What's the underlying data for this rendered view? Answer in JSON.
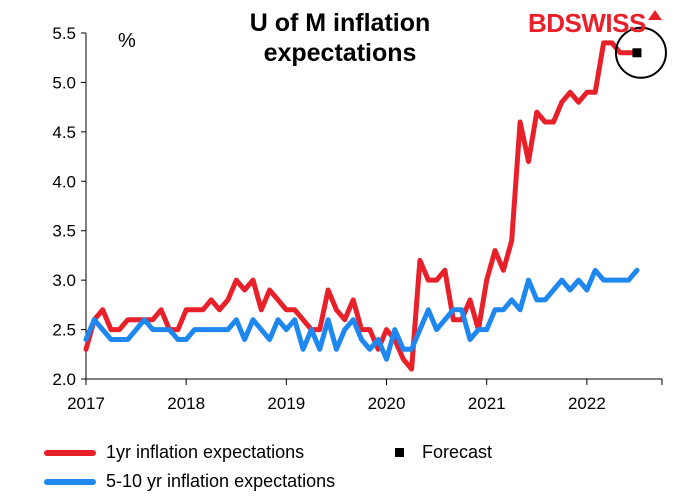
{
  "title": "U of M inflation expectations",
  "title_line1": "U of M inflation",
  "title_line2": "expectations",
  "unit_label": "%",
  "logo_text": "BDSWISS",
  "legend": {
    "one_year": "1yr inflation expectations",
    "forecast": "Forecast",
    "five_ten": "5-10 yr inflation expectations"
  },
  "colors": {
    "one_year": "#e8202a",
    "five_ten": "#1f87f0",
    "forecast": "#000000",
    "circle": "#000000"
  },
  "chart_data": {
    "type": "line",
    "xlim": [
      2017.0,
      2022.75
    ],
    "ylim": [
      2.0,
      5.5
    ],
    "y_ticks": [
      "2.0",
      "2.5",
      "3.0",
      "3.5",
      "4.0",
      "4.5",
      "5.0",
      "5.5"
    ],
    "x_ticks": [
      "2017",
      "2018",
      "2019",
      "2020",
      "2021",
      "2022"
    ],
    "series": [
      {
        "name": "1yr inflation expectations",
        "x": [
          2017.0,
          2017.083,
          2017.167,
          2017.25,
          2017.333,
          2017.417,
          2017.5,
          2017.583,
          2017.667,
          2017.75,
          2017.833,
          2017.917,
          2018.0,
          2018.083,
          2018.167,
          2018.25,
          2018.333,
          2018.417,
          2018.5,
          2018.583,
          2018.667,
          2018.75,
          2018.833,
          2018.917,
          2019.0,
          2019.083,
          2019.167,
          2019.25,
          2019.333,
          2019.417,
          2019.5,
          2019.583,
          2019.667,
          2019.75,
          2019.833,
          2019.917,
          2020.0,
          2020.083,
          2020.167,
          2020.25,
          2020.333,
          2020.417,
          2020.5,
          2020.583,
          2020.667,
          2020.75,
          2020.833,
          2020.917,
          2021.0,
          2021.083,
          2021.167,
          2021.25,
          2021.333,
          2021.417,
          2021.5,
          2021.583,
          2021.667,
          2021.75,
          2021.833,
          2021.917,
          2022.0,
          2022.083,
          2022.167,
          2022.25,
          2022.333,
          2022.417
        ],
        "values": [
          2.3,
          2.6,
          2.7,
          2.5,
          2.5,
          2.6,
          2.6,
          2.6,
          2.6,
          2.7,
          2.5,
          2.5,
          2.7,
          2.7,
          2.7,
          2.8,
          2.7,
          2.8,
          3.0,
          2.9,
          3.0,
          2.7,
          2.9,
          2.8,
          2.7,
          2.7,
          2.6,
          2.5,
          2.5,
          2.9,
          2.7,
          2.6,
          2.8,
          2.5,
          2.5,
          2.3,
          2.5,
          2.4,
          2.2,
          2.1,
          3.2,
          3.0,
          3.0,
          3.1,
          2.6,
          2.6,
          2.8,
          2.5,
          3.0,
          3.3,
          3.1,
          3.4,
          4.6,
          4.2,
          4.7,
          4.6,
          4.6,
          4.8,
          4.9,
          4.8,
          4.9,
          4.9,
          5.4,
          5.4,
          5.3,
          5.3
        ]
      },
      {
        "name": "5-10 yr inflation expectations",
        "x": [
          2017.0,
          2017.083,
          2017.167,
          2017.25,
          2017.333,
          2017.417,
          2017.5,
          2017.583,
          2017.667,
          2017.75,
          2017.833,
          2017.917,
          2018.0,
          2018.083,
          2018.167,
          2018.25,
          2018.333,
          2018.417,
          2018.5,
          2018.583,
          2018.667,
          2018.75,
          2018.833,
          2018.917,
          2019.0,
          2019.083,
          2019.167,
          2019.25,
          2019.333,
          2019.417,
          2019.5,
          2019.583,
          2019.667,
          2019.75,
          2019.833,
          2019.917,
          2020.0,
          2020.083,
          2020.167,
          2020.25,
          2020.333,
          2020.417,
          2020.5,
          2020.583,
          2020.667,
          2020.75,
          2020.833,
          2020.917,
          2021.0,
          2021.083,
          2021.167,
          2021.25,
          2021.333,
          2021.417,
          2021.5,
          2021.583,
          2021.667,
          2021.75,
          2021.833,
          2021.917,
          2022.0,
          2022.083,
          2022.167,
          2022.25,
          2022.333,
          2022.417,
          2022.5
        ],
        "values": [
          2.4,
          2.6,
          2.5,
          2.4,
          2.4,
          2.4,
          2.5,
          2.6,
          2.5,
          2.5,
          2.5,
          2.4,
          2.4,
          2.5,
          2.5,
          2.5,
          2.5,
          2.5,
          2.6,
          2.4,
          2.6,
          2.5,
          2.4,
          2.6,
          2.5,
          2.6,
          2.3,
          2.5,
          2.3,
          2.6,
          2.3,
          2.5,
          2.6,
          2.4,
          2.3,
          2.4,
          2.2,
          2.5,
          2.3,
          2.3,
          2.5,
          2.7,
          2.5,
          2.6,
          2.7,
          2.7,
          2.4,
          2.5,
          2.5,
          2.7,
          2.7,
          2.8,
          2.7,
          3.0,
          2.8,
          2.8,
          2.9,
          3.0,
          2.9,
          3.0,
          2.9,
          3.1,
          3.0,
          3.0,
          3.0,
          3.0,
          3.1
        ]
      },
      {
        "name": "Forecast",
        "x": [
          2022.5
        ],
        "values": [
          5.3
        ]
      }
    ]
  }
}
